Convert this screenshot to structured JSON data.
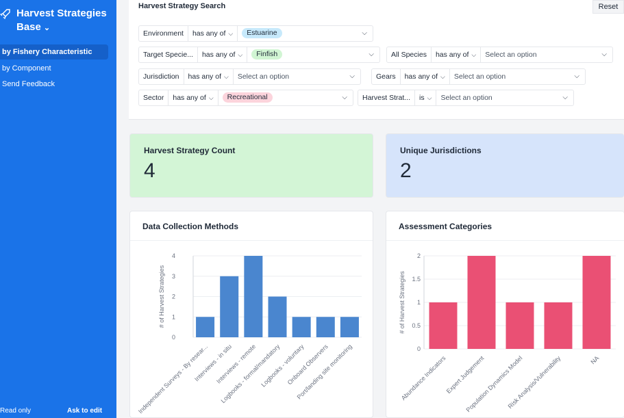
{
  "sidebar": {
    "title": "Harvest Strategies Base",
    "nav": [
      {
        "label": "by Fishery Characteristic",
        "active": true
      },
      {
        "label": "by Component",
        "active": false
      },
      {
        "label": "Send Feedback",
        "active": false
      }
    ],
    "footer": {
      "read_only": "Read only",
      "ask_to_edit": "Ask to edit"
    }
  },
  "search": {
    "title": "Harvest Strategy Search",
    "reset": "Reset",
    "filters": {
      "environment": {
        "field": "Environment",
        "op": "has any of",
        "chip": "Estuarine"
      },
      "target_species": {
        "field": "Target Specie...",
        "op": "has any of",
        "chip": "Finfish"
      },
      "all_species": {
        "field": "All Species",
        "op": "has any of",
        "placeholder": "Select an option"
      },
      "jurisdiction": {
        "field": "Jurisdiction",
        "op": "has any of",
        "placeholder": "Select an option"
      },
      "gears": {
        "field": "Gears",
        "op": "has any of",
        "placeholder": "Select an option"
      },
      "sector": {
        "field": "Sector",
        "op": "has any of",
        "chip": "Recreational"
      },
      "harvest_strategy": {
        "field": "Harvest Strat...",
        "op": "is",
        "placeholder": "Select an option"
      }
    }
  },
  "stats": {
    "count": {
      "label": "Harvest Strategy Count",
      "value": "4",
      "color": "#d3f5d6"
    },
    "jurisdictions": {
      "label": "Unique Jurisdictions",
      "value": "2",
      "color": "#d6e4fb"
    }
  },
  "chart_data": [
    {
      "type": "bar",
      "title": "Data Collection Methods",
      "ylabel": "# of Harvest Strategies",
      "color": "#4a86cf",
      "ylim": [
        0,
        4
      ],
      "yticks": [
        0,
        1,
        2,
        3,
        4
      ],
      "categories": [
        "Independent Surveys - By resear...",
        "Interviews - in situ",
        "Interviews - remote",
        "Logbooks - formal/mandatory",
        "Logbooks - voluntary",
        "Onboard Observers",
        "Port/landing site monitoring"
      ],
      "values": [
        1,
        3,
        4,
        2,
        1,
        1,
        1
      ]
    },
    {
      "type": "bar",
      "title": "Assessment Categories",
      "ylabel": "# of Harvest Strategies",
      "color": "#ea5074",
      "ylim": [
        0,
        2
      ],
      "yticks": [
        0,
        0.5,
        1,
        1.5,
        2
      ],
      "categories": [
        "Abundance Indicators",
        "Expert Judgement",
        "Population Dynamics Model",
        "Risk Analysis/Vulnerability",
        "NA"
      ],
      "values": [
        1,
        2,
        1,
        1,
        2
      ]
    }
  ]
}
